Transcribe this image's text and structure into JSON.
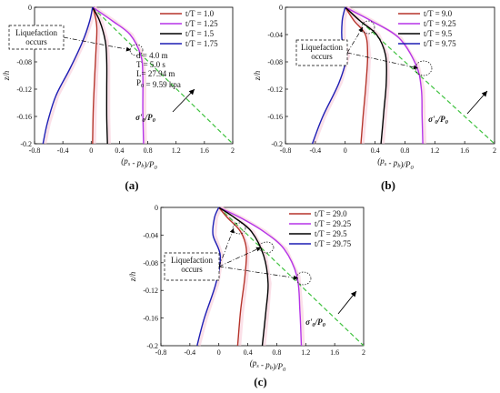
{
  "panels_meta": {
    "xlabel": "(p_s - p_b)/P_0",
    "ylabel": "z/h"
  },
  "colors": {
    "brown": "#b5332a",
    "magenta": "#b534e8",
    "black": "#000000",
    "blue": "#1d1db3",
    "green": "#3fc23f",
    "ghost": "#f7c6d6"
  },
  "chart_data": [
    {
      "panel_label": "(a)",
      "type": "line",
      "xlabel": "(p_s - p_b)/P_0",
      "ylabel": "z/h",
      "xlim": [
        -0.8,
        2
      ],
      "ylim": [
        -0.2,
        0
      ],
      "xticks": [
        "-0.8",
        "-0.4",
        "0",
        "0.4",
        "0.8",
        "1.2",
        "1.6",
        "2"
      ],
      "yticks": [
        "0",
        "-0.04",
        "-0.08",
        "-0.12",
        "-0.16",
        "-0.2"
      ],
      "series": [
        {
          "name": "t/T = 1.0",
          "color": "#b5332a",
          "points": [
            [
              0.02,
              0
            ],
            [
              0.05,
              -0.01
            ],
            [
              0.08,
              -0.03
            ],
            [
              0.07,
              -0.06
            ],
            [
              0.05,
              -0.1
            ],
            [
              0.03,
              -0.15
            ],
            [
              0.02,
              -0.2
            ]
          ]
        },
        {
          "name": "t/T = 1.25",
          "color": "#b534e8",
          "points": [
            [
              0.02,
              0
            ],
            [
              0.3,
              -0.02
            ],
            [
              0.55,
              -0.04
            ],
            [
              0.7,
              -0.07
            ],
            [
              0.73,
              -0.1
            ],
            [
              0.73,
              -0.15
            ],
            [
              0.74,
              -0.2
            ]
          ]
        },
        {
          "name": "t/T = 1.5",
          "color": "#000000",
          "points": [
            [
              0.02,
              0
            ],
            [
              0.12,
              -0.02
            ],
            [
              0.2,
              -0.05
            ],
            [
              0.22,
              -0.08
            ],
            [
              0.22,
              -0.12
            ],
            [
              0.22,
              -0.16
            ],
            [
              0.23,
              -0.2
            ]
          ]
        },
        {
          "name": "t/T = 1.75",
          "color": "#1d1db3",
          "points": [
            [
              0.02,
              0
            ],
            [
              -0.02,
              -0.02
            ],
            [
              -0.12,
              -0.05
            ],
            [
              -0.3,
              -0.09
            ],
            [
              -0.5,
              -0.13
            ],
            [
              -0.62,
              -0.17
            ],
            [
              -0.68,
              -0.2
            ]
          ]
        }
      ],
      "effective_stress_line": {
        "label": "σ'_0/P_0",
        "points": [
          [
            0.02,
            0
          ],
          [
            2.0,
            -0.2
          ]
        ]
      },
      "annotation": {
        "text": [
          "Liquefaction",
          "occurs"
        ]
      },
      "params": [
        "d = 4.0 m",
        "T = 5.0 s",
        "L= 27.94 m",
        "P_0 = 9.59 kpa"
      ]
    },
    {
      "panel_label": "(b)",
      "type": "line",
      "xlabel": "(p_s - p_b)/P_0",
      "ylabel": "z/h",
      "xlim": [
        -0.8,
        2
      ],
      "ylim": [
        -0.2,
        0
      ],
      "xticks": [
        "-0.8",
        "-0.4",
        "0",
        "0.4",
        "0.8",
        "1.2",
        "1.6",
        "2"
      ],
      "yticks": [
        "0",
        "-0.04",
        "-0.08",
        "-0.12",
        "-0.16",
        "-0.2"
      ],
      "series": [
        {
          "name": "t/T = 9.0",
          "color": "#b5332a",
          "points": [
            [
              0,
              0
            ],
            [
              0.12,
              -0.02
            ],
            [
              0.27,
              -0.04
            ],
            [
              0.3,
              -0.07
            ],
            [
              0.28,
              -0.11
            ],
            [
              0.24,
              -0.16
            ],
            [
              0.21,
              -0.2
            ]
          ]
        },
        {
          "name": "t/T = 9.25",
          "color": "#b534e8",
          "points": [
            [
              0,
              0
            ],
            [
              0.35,
              -0.02
            ],
            [
              0.72,
              -0.045
            ],
            [
              0.95,
              -0.085
            ],
            [
              1.02,
              -0.12
            ],
            [
              1.03,
              -0.16
            ],
            [
              1.04,
              -0.2
            ]
          ]
        },
        {
          "name": "t/T = 9.5",
          "color": "#000000",
          "points": [
            [
              0,
              0
            ],
            [
              0.2,
              -0.02
            ],
            [
              0.42,
              -0.04
            ],
            [
              0.54,
              -0.07
            ],
            [
              0.55,
              -0.11
            ],
            [
              0.52,
              -0.15
            ],
            [
              0.48,
              -0.2
            ]
          ]
        },
        {
          "name": "t/T = 9.75",
          "color": "#1d1db3",
          "points": [
            [
              0,
              0
            ],
            [
              -0.04,
              -0.02
            ],
            [
              -0.04,
              -0.05
            ],
            [
              0.02,
              -0.07
            ],
            [
              -0.08,
              -0.11
            ],
            [
              -0.3,
              -0.16
            ],
            [
              -0.44,
              -0.2
            ]
          ]
        }
      ],
      "effective_stress_line": {
        "label": "σ'_0/P_0",
        "points": [
          [
            0,
            0
          ],
          [
            2.0,
            -0.2
          ]
        ]
      },
      "annotation": {
        "text": [
          "Liquefaction",
          "occurs"
        ]
      },
      "params": []
    },
    {
      "panel_label": "(c)",
      "type": "line",
      "xlabel": "(p_s - p_b)/P_0",
      "ylabel": "z/h",
      "xlim": [
        -0.8,
        2
      ],
      "ylim": [
        -0.2,
        0
      ],
      "xticks": [
        "-0.8",
        "-0.4",
        "0",
        "0.4",
        "0.8",
        "1.2",
        "1.6",
        "2"
      ],
      "yticks": [
        "0",
        "-0.04",
        "-0.08",
        "-0.12",
        "-0.16",
        "-0.2"
      ],
      "series": [
        {
          "name": "t/T = 29.0",
          "color": "#b5332a",
          "points": [
            [
              0,
              0
            ],
            [
              0.12,
              -0.015
            ],
            [
              0.3,
              -0.035
            ],
            [
              0.38,
              -0.06
            ],
            [
              0.36,
              -0.1
            ],
            [
              0.3,
              -0.15
            ],
            [
              0.26,
              -0.2
            ]
          ]
        },
        {
          "name": "t/T = 29.25",
          "color": "#b534e8",
          "points": [
            [
              0,
              0
            ],
            [
              0.3,
              -0.015
            ],
            [
              0.62,
              -0.035
            ],
            [
              0.9,
              -0.06
            ],
            [
              1.08,
              -0.1
            ],
            [
              1.12,
              -0.15
            ],
            [
              1.14,
              -0.2
            ]
          ]
        },
        {
          "name": "t/T = 29.5",
          "color": "#000000",
          "points": [
            [
              0,
              0
            ],
            [
              0.22,
              -0.015
            ],
            [
              0.45,
              -0.035
            ],
            [
              0.62,
              -0.07
            ],
            [
              0.68,
              -0.11
            ],
            [
              0.65,
              -0.15
            ],
            [
              0.6,
              -0.2
            ]
          ]
        },
        {
          "name": "t/T = 29.75",
          "color": "#1d1db3",
          "points": [
            [
              0,
              0
            ],
            [
              -0.06,
              -0.015
            ],
            [
              -0.08,
              -0.04
            ],
            [
              0.02,
              -0.07
            ],
            [
              -0.04,
              -0.11
            ],
            [
              -0.2,
              -0.16
            ],
            [
              -0.3,
              -0.2
            ]
          ]
        }
      ],
      "effective_stress_line": {
        "label": "σ'_0/P_0",
        "points": [
          [
            0,
            0
          ],
          [
            2.0,
            -0.2
          ]
        ]
      },
      "annotation": {
        "text": [
          "Liquefaction",
          "occurs"
        ]
      },
      "params": []
    }
  ]
}
